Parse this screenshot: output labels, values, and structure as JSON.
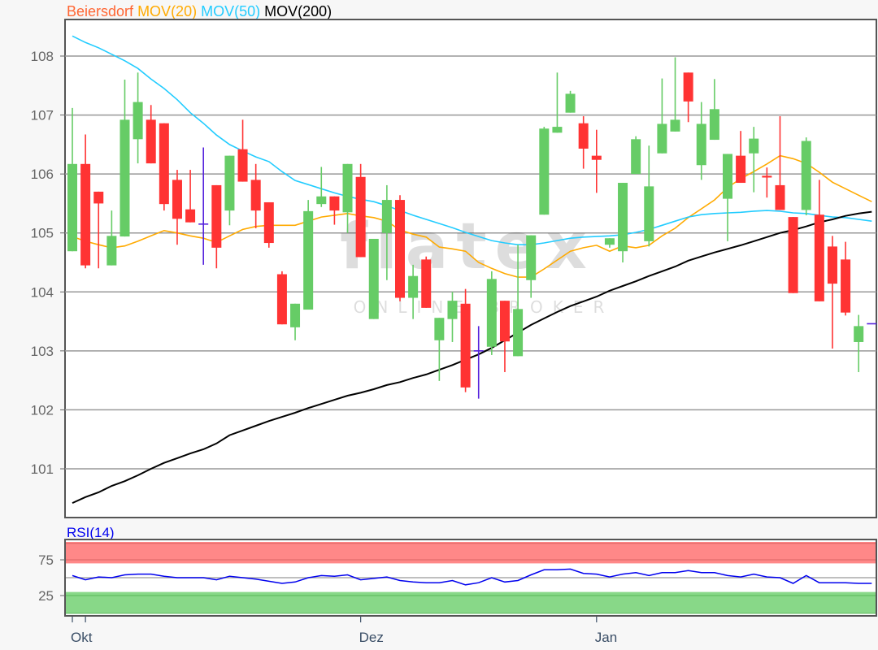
{
  "chart_data": [
    {
      "type": "candlestick",
      "title_parts": [
        {
          "text": "Beiersdorf",
          "color": "#ff6633"
        },
        {
          "text": "MOV(20)",
          "color": "#ffaa00"
        },
        {
          "text": "MOV(50)",
          "color": "#22ccff"
        },
        {
          "text": "MOV(200)",
          "color": "#000000"
        }
      ],
      "ylim": [
        100.2,
        108.6
      ],
      "y_ticks": [
        101,
        102,
        103,
        104,
        105,
        106,
        107,
        108
      ],
      "grid": true,
      "colors": {
        "up": "#66cc66",
        "down": "#ff3333",
        "doji": "#5522dd"
      },
      "x_ticks": [
        {
          "label": "Okt",
          "index": 0
        },
        {
          "label": "",
          "index": 1
        },
        {
          "label": "Dez",
          "index": 22
        },
        {
          "label": "Jan",
          "index": 40
        }
      ],
      "ohlc": [
        [
          104.69,
          107.12,
          104.69,
          106.17
        ],
        [
          106.17,
          106.67,
          104.4,
          104.45
        ],
        [
          105.7,
          105.7,
          104.4,
          105.5
        ],
        [
          104.45,
          105.38,
          104.45,
          104.95
        ],
        [
          104.94,
          107.6,
          104.94,
          106.92
        ],
        [
          106.59,
          107.72,
          106.18,
          107.22
        ],
        [
          106.92,
          107.17,
          106.18,
          106.18
        ],
        [
          106.86,
          106.86,
          105.38,
          105.49
        ],
        [
          105.9,
          106.07,
          104.8,
          105.24
        ],
        [
          105.4,
          106.07,
          105.18,
          105.18
        ],
        [
          105.15,
          106.45,
          104.46,
          105.15
        ],
        [
          105.81,
          105.81,
          104.4,
          104.75
        ],
        [
          105.38,
          106.31,
          105.13,
          106.31
        ],
        [
          106.42,
          106.92,
          105.87,
          105.87
        ],
        [
          105.9,
          106.17,
          105.08,
          105.38
        ],
        [
          105.52,
          105.52,
          104.75,
          104.83
        ],
        [
          104.3,
          104.35,
          103.45,
          103.45
        ],
        [
          103.4,
          103.8,
          103.18,
          103.8
        ],
        [
          103.7,
          105.56,
          103.7,
          105.37
        ],
        [
          105.49,
          106.12,
          105.44,
          105.62
        ],
        [
          105.62,
          105.62,
          105.14,
          105.38
        ],
        [
          105.35,
          106.17,
          105.0,
          106.17
        ],
        [
          105.95,
          106.17,
          104.59,
          104.59
        ],
        [
          103.54,
          104.9,
          103.54,
          104.9
        ],
        [
          105.0,
          105.81,
          104.2,
          105.56
        ],
        [
          105.56,
          105.64,
          103.84,
          103.9
        ],
        [
          103.9,
          104.46,
          103.54,
          104.27
        ],
        [
          104.55,
          104.6,
          103.73,
          103.73
        ],
        [
          103.18,
          103.56,
          102.49,
          103.56
        ],
        [
          103.54,
          104.0,
          103.15,
          103.85
        ],
        [
          103.8,
          104.05,
          102.3,
          102.38
        ],
        [
          103.0,
          103.42,
          102.19,
          103.0
        ],
        [
          103.07,
          104.35,
          102.93,
          104.22
        ],
        [
          103.85,
          103.85,
          102.64,
          103.16
        ],
        [
          102.91,
          104.8,
          102.91,
          103.71
        ],
        [
          104.2,
          104.96,
          103.9,
          104.96
        ],
        [
          105.31,
          106.8,
          105.31,
          106.77
        ],
        [
          106.7,
          107.72,
          106.7,
          106.8
        ],
        [
          107.04,
          107.41,
          107.04,
          107.36
        ],
        [
          106.86,
          106.98,
          106.09,
          106.43
        ],
        [
          106.31,
          106.75,
          105.68,
          106.24
        ],
        [
          104.8,
          104.91,
          104.75,
          104.91
        ],
        [
          104.69,
          105.85,
          104.5,
          105.85
        ],
        [
          106.0,
          106.64,
          106.0,
          106.59
        ],
        [
          104.86,
          106.48,
          104.77,
          105.79
        ],
        [
          106.35,
          107.62,
          106.35,
          106.85
        ],
        [
          106.72,
          107.98,
          106.72,
          106.92
        ],
        [
          107.72,
          107.72,
          106.88,
          107.23
        ],
        [
          106.15,
          107.22,
          105.9,
          106.85
        ],
        [
          106.58,
          107.61,
          106.58,
          107.1
        ],
        [
          105.58,
          106.34,
          104.86,
          106.34
        ],
        [
          106.31,
          106.73,
          105.85,
          105.85
        ],
        [
          106.35,
          106.8,
          105.69,
          106.6
        ],
        [
          105.97,
          106.11,
          105.6,
          105.94
        ],
        [
          105.81,
          106.98,
          105.39,
          105.39
        ],
        [
          105.27,
          105.27,
          103.98,
          103.98
        ],
        [
          105.39,
          106.62,
          105.3,
          106.56
        ],
        [
          105.31,
          105.9,
          103.84,
          103.84
        ],
        [
          104.77,
          104.95,
          103.04,
          104.14
        ],
        [
          104.55,
          104.85,
          103.6,
          103.65
        ],
        [
          103.15,
          103.61,
          102.64,
          103.42
        ],
        [
          103.46,
          103.46,
          103.46,
          103.46
        ]
      ],
      "series": [
        {
          "name": "MOV(20)",
          "color": "#ffaa00",
          "values": [
            104.94,
            104.86,
            104.8,
            104.75,
            104.78,
            104.86,
            104.95,
            105.04,
            105.0,
            104.95,
            104.91,
            104.84,
            104.95,
            105.06,
            105.11,
            105.13,
            105.13,
            105.13,
            105.2,
            105.27,
            105.3,
            105.33,
            105.29,
            105.26,
            105.2,
            105.05,
            104.98,
            104.93,
            104.76,
            104.73,
            104.69,
            104.5,
            104.4,
            104.31,
            104.25,
            104.25,
            104.39,
            104.54,
            104.69,
            104.75,
            104.79,
            104.69,
            104.78,
            104.75,
            104.79,
            104.95,
            105.08,
            105.26,
            105.41,
            105.56,
            105.77,
            105.92,
            106.04,
            106.17,
            106.31,
            106.26,
            106.18,
            106.03,
            105.86,
            105.75,
            105.64,
            105.53
          ]
        },
        {
          "name": "MOV(50)",
          "color": "#22ccff",
          "values": [
            108.34,
            108.23,
            108.14,
            108.03,
            107.92,
            107.79,
            107.61,
            107.45,
            107.26,
            107.04,
            106.86,
            106.66,
            106.5,
            106.39,
            106.29,
            106.21,
            106.04,
            105.89,
            105.82,
            105.75,
            105.68,
            105.62,
            105.57,
            105.53,
            105.46,
            105.38,
            105.3,
            105.23,
            105.16,
            105.09,
            105.01,
            104.94,
            104.87,
            104.83,
            104.8,
            104.8,
            104.83,
            104.87,
            104.91,
            104.93,
            104.94,
            104.95,
            104.97,
            105.01,
            105.06,
            105.13,
            105.2,
            105.27,
            105.31,
            105.33,
            105.34,
            105.35,
            105.37,
            105.38,
            105.37,
            105.34,
            105.33,
            105.3,
            105.27,
            105.26,
            105.23,
            105.2
          ]
        },
        {
          "name": "MOV(200)",
          "color": "#000000",
          "values": [
            100.42,
            100.52,
            100.6,
            100.71,
            100.79,
            100.89,
            101.0,
            101.1,
            101.18,
            101.26,
            101.33,
            101.43,
            101.57,
            101.65,
            101.73,
            101.81,
            101.88,
            101.95,
            102.03,
            102.1,
            102.17,
            102.24,
            102.29,
            102.35,
            102.42,
            102.47,
            102.54,
            102.6,
            102.68,
            102.76,
            102.85,
            102.94,
            103.05,
            103.18,
            103.31,
            103.44,
            103.55,
            103.66,
            103.76,
            103.84,
            103.92,
            104.02,
            104.1,
            104.18,
            104.27,
            104.35,
            104.43,
            104.53,
            104.6,
            104.67,
            104.73,
            104.79,
            104.86,
            104.93,
            105.0,
            105.05,
            105.11,
            105.18,
            105.23,
            105.29,
            105.33,
            105.36
          ]
        }
      ],
      "watermark": {
        "logo": "flatex",
        "tagline": "ONLINE BROKER"
      }
    },
    {
      "type": "line",
      "title": "RSI(14)",
      "title_color": "#0000ee",
      "ylim": [
        0,
        100
      ],
      "y_ticks": [
        75,
        25
      ],
      "zones": [
        {
          "from": 70,
          "to": 100,
          "color": "#ff8888"
        },
        {
          "from": 0,
          "to": 30,
          "color": "#88d888"
        }
      ],
      "series": [
        {
          "name": "RSI(14)",
          "color": "#0000ee",
          "values": [
            53,
            47,
            51,
            50,
            54,
            55,
            55,
            52,
            50,
            50,
            50,
            47,
            52,
            50,
            48,
            45,
            42,
            44,
            50,
            53,
            52,
            54,
            47,
            49,
            51,
            46,
            44,
            43,
            43,
            46,
            40,
            43,
            50,
            44,
            46,
            54,
            61,
            61,
            62,
            56,
            55,
            51,
            55,
            57,
            53,
            57,
            57,
            60,
            57,
            57,
            53,
            51,
            55,
            51,
            50,
            42,
            53,
            43,
            43,
            43,
            42,
            42
          ]
        }
      ]
    }
  ]
}
